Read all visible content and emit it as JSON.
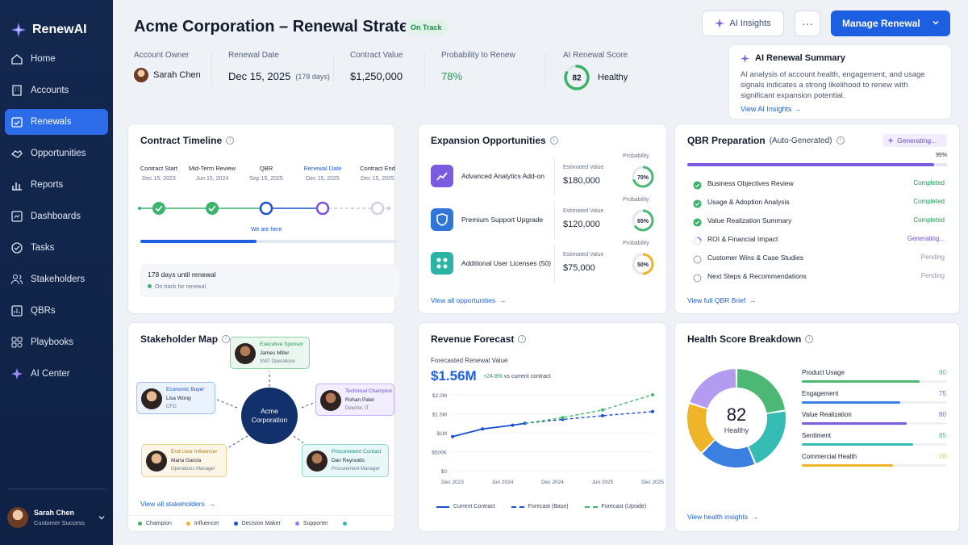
{
  "app": {
    "name": "RenewAI"
  },
  "nav": [
    {
      "label": "Home",
      "icon": "home-icon"
    },
    {
      "label": "Accounts",
      "icon": "building-icon"
    },
    {
      "label": "Renewals",
      "icon": "calendar-check-icon",
      "active": true
    },
    {
      "label": "Opportunities",
      "icon": "handshake-icon"
    },
    {
      "label": "Reports",
      "icon": "bar-chart-icon"
    },
    {
      "label": "Dashboards",
      "icon": "dashboard-icon"
    },
    {
      "label": "Tasks",
      "icon": "check-circle-icon"
    },
    {
      "label": "Stakeholders",
      "icon": "users-icon"
    },
    {
      "label": "QBRs",
      "icon": "presentation-icon"
    },
    {
      "label": "Playbooks",
      "icon": "grid-icon"
    },
    {
      "label": "AI Center",
      "icon": "sparkle-icon"
    }
  ],
  "user": {
    "name": "Sarah Chen",
    "role": "Customer Success"
  },
  "header": {
    "title": "Acme Corporation – Renewal Strategy",
    "status": "On Track",
    "ai_insights": "AI Insights",
    "more": "···",
    "manage": "Manage Renewal"
  },
  "metrics": {
    "owner_label": "Account Owner",
    "owner": "Sarah Chen",
    "renewal_label": "Renewal Date",
    "renewal": "Dec 15, 2025",
    "renewal_days": "(178 days)",
    "contract_label": "Contract Value",
    "contract": "$1,250,000",
    "prob_label": "Probability to Renew",
    "prob": "78%",
    "score_label": "AI Renewal Score",
    "score": "82",
    "score_status": "Healthy",
    "score_value": 0.82
  },
  "summary": {
    "title": "AI Renewal Summary",
    "text": "AI analysis of account health, engagement, and usage signals indicates a strong likelihood to renew with significant expansion potential.",
    "link": "View AI Insights"
  },
  "timeline": {
    "title": "Contract Timeline",
    "milestones": [
      {
        "name": "Contract Start",
        "date": "Dec 15, 2023"
      },
      {
        "name": "Mid-Term Review",
        "date": "Jun 15, 2024"
      },
      {
        "name": "QBR",
        "date": "Sep 15, 2025"
      },
      {
        "name": "Renewal Date",
        "date": "Dec 15, 2025"
      },
      {
        "name": "Contract End",
        "date": "Dec 15, 2025"
      }
    ],
    "here": "We are here",
    "progress": 0.45,
    "days": "178 days until renewal",
    "status": "On track for renewal"
  },
  "expansion": {
    "title": "Expansion Opportunities",
    "est_label": "Estimated Value",
    "prob_label": "Probability",
    "items": [
      {
        "name": "Advanced Analytics Add-on",
        "value": "$180,000",
        "prob": "70%",
        "p": 0.7,
        "color": "#7b5ce0",
        "ring": "#4cb873"
      },
      {
        "name": "Premium Support Upgrade",
        "value": "$120,000",
        "prob": "65%",
        "p": 0.65,
        "color": "#2f76d8",
        "ring": "#4cb873"
      },
      {
        "name": "Additional User Licenses (50)",
        "value": "$75,000",
        "prob": "50%",
        "p": 0.5,
        "color": "#2bb3a6",
        "ring": "#f0b429"
      }
    ],
    "link": "View all opportunities"
  },
  "qbr": {
    "title": "QBR Preparation",
    "subtitle": "(Auto-Generated)",
    "badge": "Generating...",
    "percent": "95%",
    "progress": 0.95,
    "items": [
      {
        "label": "Business Objectives Review",
        "status": "Completed",
        "state": "done"
      },
      {
        "label": "Usage & Adoption Analysis",
        "status": "Completed",
        "state": "done"
      },
      {
        "label": "Value Realization Summary",
        "status": "Completed",
        "state": "done"
      },
      {
        "label": "ROI & Financial Impact",
        "status": "Generating...",
        "state": "gen"
      },
      {
        "label": "Customer Wins & Case Studies",
        "status": "Pending",
        "state": "pending"
      },
      {
        "label": "Next Steps & Recommendations",
        "status": "Pending",
        "state": "pending"
      }
    ],
    "link": "View full QBR Brief"
  },
  "stakeholders": {
    "title": "Stakeholder Map",
    "center": [
      "Acme",
      "Corporation"
    ],
    "people": [
      {
        "role": "Executive Sponsor",
        "name": "James Miller",
        "title": "SVP, Operations",
        "type": "champion"
      },
      {
        "role": "Economic Buyer",
        "name": "Lisa Wong",
        "title": "CFO",
        "type": "decision"
      },
      {
        "role": "Technical Champion",
        "name": "Rohan Patel",
        "title": "Director, IT",
        "type": "supporter"
      },
      {
        "role": "End User Influencer",
        "name": "Maria Garcia",
        "title": "Operations Manager",
        "type": "influencer"
      },
      {
        "role": "Procurement Contact",
        "name": "Dan Reynolds",
        "title": "Procurement Manager",
        "type": "other"
      }
    ],
    "link": "View all stakeholders",
    "legend": [
      "Champion",
      "Influencer",
      "Decision Maker",
      "Supporter"
    ]
  },
  "forecast": {
    "title": "Revenue Forecast",
    "sub": "Forecasted Renewal Value",
    "value": "$1.56M",
    "delta": "+24.8%",
    "delta_text": "vs current contract",
    "legend": [
      "Current Contract",
      "Forecast (Base)",
      "Forecast (Upside)"
    ]
  },
  "chart_data": {
    "type": "line",
    "x": [
      "Dec 2023",
      "Jun 2024",
      "Dec 2024",
      "Jun 2025",
      "Dec 2025"
    ],
    "yticks": [
      "$0",
      "$500K",
      "$1M",
      "$1.5M",
      "$2.0M"
    ],
    "ylim": [
      0,
      2000000
    ],
    "series": [
      {
        "name": "Current Contract",
        "values": [
          [
            0,
            0.9
          ],
          [
            0.6,
            1.1
          ],
          [
            1.2,
            1.2
          ],
          [
            1.45,
            1.25
          ]
        ],
        "color": "#1c4fd1"
      },
      {
        "name": "Forecast (Base)",
        "values": [
          [
            1.45,
            1.25
          ],
          [
            2.2,
            1.35
          ],
          [
            3.0,
            1.45
          ],
          [
            4.0,
            1.56
          ]
        ],
        "color": "#1c4fd1"
      },
      {
        "name": "Forecast (Upside)",
        "values": [
          [
            1.45,
            1.25
          ],
          [
            2.2,
            1.4
          ],
          [
            3.0,
            1.6
          ],
          [
            4.0,
            2.0
          ]
        ],
        "color": "#44b86a"
      }
    ]
  },
  "health": {
    "title": "Health Score Breakdown",
    "score": "82",
    "status": "Healthy",
    "items": [
      {
        "label": "Product Usage",
        "value": "90",
        "v": 0.9,
        "color": "#4cb873"
      },
      {
        "label": "Engagement",
        "value": "75",
        "v": 0.75,
        "color": "#3b7fe0"
      },
      {
        "label": "Value Realization",
        "value": "80",
        "v": 0.8,
        "color": "#7b5ce0"
      },
      {
        "label": "Sentiment",
        "value": "85",
        "v": 0.85,
        "color": "#35bcb4"
      },
      {
        "label": "Commercial Health",
        "value": "70",
        "v": 0.7,
        "color": "#f0b429"
      }
    ],
    "link": "View health insights"
  }
}
